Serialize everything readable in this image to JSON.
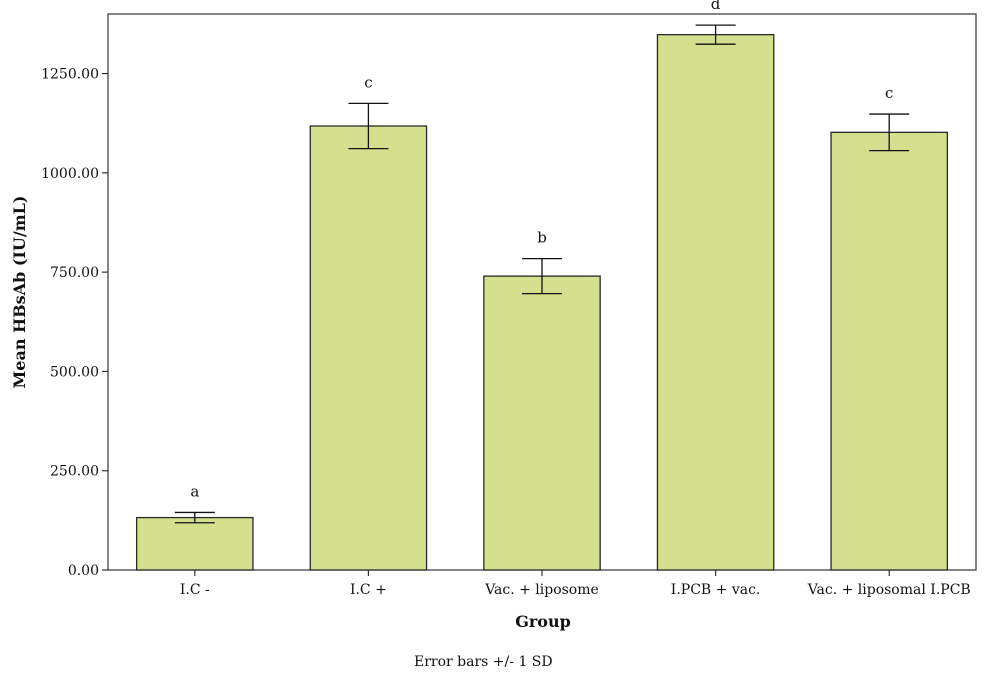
{
  "chart_data": {
    "type": "bar",
    "categories": [
      "I.C -",
      "I.C +",
      "Vac. + liposome",
      "I.PCB + vac.",
      "Vac. + liposomal I.PCB"
    ],
    "values": [
      132,
      1118,
      740,
      1348,
      1102
    ],
    "error_sd": [
      13,
      57,
      44,
      24,
      46
    ],
    "significance_letters": [
      "a",
      "c",
      "b",
      "d",
      "c"
    ],
    "xlabel": "Group",
    "ylabel": "Mean HBsAb (IU/mL)",
    "ylim": [
      0,
      1400
    ],
    "yticks": [
      0,
      250,
      500,
      750,
      1000,
      1250
    ],
    "ytick_labels": [
      "0.00",
      "250.00",
      "500.00",
      "750.00",
      "1000.00",
      "1250.00"
    ],
    "footnote": "Error bars +/- 1 SD",
    "grid": false,
    "colors": {
      "bar_fill": "#d4e08e",
      "bar_stroke": "#2a2a2a",
      "axis": "#333333",
      "error_bar": "#111111"
    }
  }
}
